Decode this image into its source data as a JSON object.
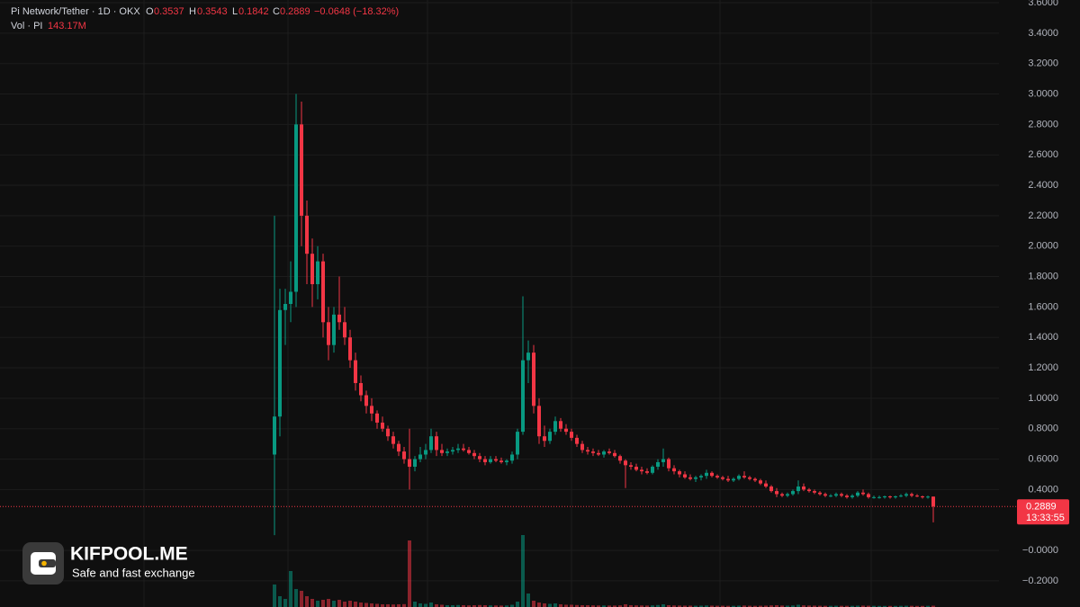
{
  "chart_data": {
    "type": "candlestick",
    "symbol": "Pi Network/Tether · 1D · OKX",
    "ohlc_labels": [
      "O",
      "H",
      "L",
      "C"
    ],
    "change_label": "−0.0648 (−18.32%)",
    "up_color": "#089981",
    "down_color": "#f23645",
    "ylim": [
      -0.372,
      3.618
    ],
    "yticks": [
      {
        "value": -0.2,
        "label": "−0.2000"
      },
      {
        "value": 0,
        "label": "−0.0000"
      },
      {
        "value": 0.4,
        "label": "0.4000"
      },
      {
        "value": 0.6,
        "label": "0.6000"
      },
      {
        "value": 0.8,
        "label": "0.8000"
      },
      {
        "value": 1,
        "label": "1.0000"
      },
      {
        "value": 1.2,
        "label": "1.2000"
      },
      {
        "value": 1.4,
        "label": "1.4000"
      },
      {
        "value": 1.6,
        "label": "1.6000"
      },
      {
        "value": 1.8,
        "label": "1.8000"
      },
      {
        "value": 2,
        "label": "2.0000"
      },
      {
        "value": 2.2,
        "label": "2.2000"
      },
      {
        "value": 2.4,
        "label": "2.4000"
      },
      {
        "value": 2.6,
        "label": "2.6000"
      },
      {
        "value": 2.8,
        "label": "2.8000"
      },
      {
        "value": 3,
        "label": "3.0000"
      },
      {
        "value": 3.2,
        "label": "3.2000"
      },
      {
        "value": 3.4,
        "label": "3.4000"
      },
      {
        "value": 3.6,
        "label": "3.6000"
      }
    ],
    "grid": true,
    "countdown": "13:33:55",
    "ohlc": [
      [
        0.63,
        2.2,
        0.1,
        0.88
      ],
      [
        0.88,
        1.72,
        0.75,
        1.58
      ],
      [
        1.58,
        1.72,
        1.35,
        1.62
      ],
      [
        1.62,
        1.9,
        1.5,
        1.7
      ],
      [
        1.7,
        3.0,
        1.6,
        2.8
      ],
      [
        2.8,
        2.95,
        2.0,
        2.2
      ],
      [
        2.2,
        2.3,
        1.75,
        1.95
      ],
      [
        1.95,
        2.05,
        1.6,
        1.75
      ],
      [
        1.75,
        2.0,
        1.65,
        1.9
      ],
      [
        1.9,
        1.95,
        1.4,
        1.5
      ],
      [
        1.5,
        1.6,
        1.25,
        1.35
      ],
      [
        1.35,
        1.6,
        1.3,
        1.55
      ],
      [
        1.55,
        1.8,
        1.45,
        1.5
      ],
      [
        1.5,
        1.6,
        1.35,
        1.4
      ],
      [
        1.4,
        1.45,
        1.2,
        1.25
      ],
      [
        1.25,
        1.3,
        1.05,
        1.1
      ],
      [
        1.1,
        1.15,
        0.98,
        1.02
      ],
      [
        1.02,
        1.05,
        0.9,
        0.95
      ],
      [
        0.95,
        1.0,
        0.85,
        0.9
      ],
      [
        0.9,
        0.92,
        0.8,
        0.84
      ],
      [
        0.84,
        0.88,
        0.78,
        0.8
      ],
      [
        0.8,
        0.82,
        0.72,
        0.75
      ],
      [
        0.75,
        0.78,
        0.67,
        0.7
      ],
      [
        0.7,
        0.72,
        0.62,
        0.65
      ],
      [
        0.65,
        0.68,
        0.57,
        0.6
      ],
      [
        0.6,
        0.8,
        0.4,
        0.55
      ],
      [
        0.55,
        0.62,
        0.52,
        0.6
      ],
      [
        0.6,
        0.68,
        0.58,
        0.63
      ],
      [
        0.63,
        0.7,
        0.6,
        0.66
      ],
      [
        0.66,
        0.8,
        0.64,
        0.75
      ],
      [
        0.75,
        0.78,
        0.62,
        0.66
      ],
      [
        0.66,
        0.7,
        0.62,
        0.64
      ],
      [
        0.64,
        0.67,
        0.62,
        0.65
      ],
      [
        0.65,
        0.68,
        0.63,
        0.66
      ],
      [
        0.66,
        0.7,
        0.64,
        0.67
      ],
      [
        0.67,
        0.7,
        0.65,
        0.66
      ],
      [
        0.66,
        0.68,
        0.63,
        0.64
      ],
      [
        0.64,
        0.66,
        0.6,
        0.62
      ],
      [
        0.62,
        0.64,
        0.58,
        0.6
      ],
      [
        0.6,
        0.62,
        0.56,
        0.58
      ],
      [
        0.58,
        0.62,
        0.57,
        0.6
      ],
      [
        0.6,
        0.62,
        0.58,
        0.59
      ],
      [
        0.59,
        0.61,
        0.57,
        0.58
      ],
      [
        0.58,
        0.6,
        0.56,
        0.59
      ],
      [
        0.59,
        0.65,
        0.57,
        0.63
      ],
      [
        0.63,
        0.8,
        0.6,
        0.78
      ],
      [
        0.78,
        1.67,
        0.76,
        1.25
      ],
      [
        1.25,
        1.38,
        1.1,
        1.3
      ],
      [
        1.3,
        1.35,
        0.9,
        0.95
      ],
      [
        0.95,
        1.0,
        0.7,
        0.75
      ],
      [
        0.75,
        0.82,
        0.68,
        0.72
      ],
      [
        0.72,
        0.8,
        0.7,
        0.78
      ],
      [
        0.78,
        0.88,
        0.76,
        0.85
      ],
      [
        0.85,
        0.87,
        0.78,
        0.8
      ],
      [
        0.8,
        0.83,
        0.76,
        0.78
      ],
      [
        0.78,
        0.8,
        0.72,
        0.74
      ],
      [
        0.74,
        0.76,
        0.68,
        0.7
      ],
      [
        0.7,
        0.72,
        0.64,
        0.66
      ],
      [
        0.66,
        0.68,
        0.63,
        0.65
      ],
      [
        0.65,
        0.67,
        0.62,
        0.64
      ],
      [
        0.64,
        0.66,
        0.62,
        0.63
      ],
      [
        0.63,
        0.66,
        0.61,
        0.65
      ],
      [
        0.65,
        0.67,
        0.63,
        0.64
      ],
      [
        0.64,
        0.66,
        0.61,
        0.62
      ],
      [
        0.62,
        0.63,
        0.57,
        0.59
      ],
      [
        0.59,
        0.6,
        0.41,
        0.56
      ],
      [
        0.56,
        0.58,
        0.53,
        0.55
      ],
      [
        0.55,
        0.57,
        0.52,
        0.53
      ],
      [
        0.53,
        0.55,
        0.5,
        0.52
      ],
      [
        0.52,
        0.54,
        0.5,
        0.51
      ],
      [
        0.51,
        0.56,
        0.5,
        0.55
      ],
      [
        0.55,
        0.6,
        0.53,
        0.58
      ],
      [
        0.58,
        0.67,
        0.55,
        0.6
      ],
      [
        0.6,
        0.61,
        0.52,
        0.54
      ],
      [
        0.54,
        0.56,
        0.5,
        0.52
      ],
      [
        0.52,
        0.53,
        0.48,
        0.5
      ],
      [
        0.5,
        0.52,
        0.47,
        0.48
      ],
      [
        0.48,
        0.5,
        0.46,
        0.47
      ],
      [
        0.47,
        0.49,
        0.45,
        0.48
      ],
      [
        0.48,
        0.5,
        0.46,
        0.49
      ],
      [
        0.49,
        0.53,
        0.47,
        0.51
      ],
      [
        0.51,
        0.52,
        0.48,
        0.49
      ],
      [
        0.49,
        0.5,
        0.47,
        0.48
      ],
      [
        0.48,
        0.49,
        0.46,
        0.47
      ],
      [
        0.47,
        0.49,
        0.45,
        0.46
      ],
      [
        0.46,
        0.48,
        0.45,
        0.47
      ],
      [
        0.47,
        0.5,
        0.46,
        0.49
      ],
      [
        0.49,
        0.52,
        0.47,
        0.48
      ],
      [
        0.48,
        0.49,
        0.46,
        0.47
      ],
      [
        0.47,
        0.48,
        0.45,
        0.46
      ],
      [
        0.46,
        0.47,
        0.43,
        0.44
      ],
      [
        0.44,
        0.46,
        0.41,
        0.42
      ],
      [
        0.42,
        0.43,
        0.38,
        0.39
      ],
      [
        0.39,
        0.41,
        0.35,
        0.37
      ],
      [
        0.37,
        0.38,
        0.35,
        0.36
      ],
      [
        0.36,
        0.38,
        0.35,
        0.37
      ],
      [
        0.37,
        0.4,
        0.36,
        0.39
      ],
      [
        0.39,
        0.46,
        0.37,
        0.42
      ],
      [
        0.42,
        0.44,
        0.39,
        0.4
      ],
      [
        0.4,
        0.41,
        0.38,
        0.39
      ],
      [
        0.39,
        0.4,
        0.37,
        0.38
      ],
      [
        0.38,
        0.39,
        0.36,
        0.37
      ],
      [
        0.37,
        0.38,
        0.35,
        0.36
      ],
      [
        0.36,
        0.37,
        0.35,
        0.36
      ],
      [
        0.36,
        0.38,
        0.35,
        0.37
      ],
      [
        0.37,
        0.38,
        0.35,
        0.36
      ],
      [
        0.36,
        0.37,
        0.34,
        0.35
      ],
      [
        0.35,
        0.37,
        0.34,
        0.36
      ],
      [
        0.36,
        0.39,
        0.35,
        0.38
      ],
      [
        0.38,
        0.4,
        0.36,
        0.37
      ],
      [
        0.37,
        0.38,
        0.34,
        0.35
      ],
      [
        0.35,
        0.36,
        0.34,
        0.35
      ],
      [
        0.35,
        0.36,
        0.34,
        0.35
      ],
      [
        0.35,
        0.36,
        0.34,
        0.355
      ],
      [
        0.355,
        0.36,
        0.34,
        0.35
      ],
      [
        0.35,
        0.36,
        0.34,
        0.355
      ],
      [
        0.355,
        0.37,
        0.35,
        0.36
      ],
      [
        0.36,
        0.38,
        0.35,
        0.37
      ],
      [
        0.37,
        0.38,
        0.35,
        0.36
      ],
      [
        0.36,
        0.37,
        0.35,
        0.355
      ],
      [
        0.355,
        0.36,
        0.34,
        0.35
      ],
      [
        0.35,
        0.36,
        0.34,
        0.3537
      ],
      [
        0.3537,
        0.3543,
        0.1842,
        0.2889
      ]
    ],
    "volume": {
      "name": "Vol · PI",
      "last_label": "143.17M",
      "values": [
        2500,
        1200,
        900,
        4000,
        2000,
        1800,
        1200,
        900,
        700,
        800,
        900,
        700,
        800,
        600,
        700,
        600,
        500,
        450,
        400,
        350,
        300,
        300,
        280,
        300,
        320,
        7400,
        600,
        400,
        350,
        500,
        300,
        250,
        200,
        200,
        220,
        200,
        180,
        200,
        220,
        200,
        180,
        170,
        160,
        170,
        250,
        600,
        8000,
        1500,
        700,
        500,
        400,
        350,
        400,
        300,
        250,
        250,
        220,
        200,
        200,
        180,
        170,
        170,
        160,
        160,
        180,
        300,
        200,
        180,
        170,
        160,
        180,
        220,
        300,
        200,
        170,
        160,
        150,
        150,
        140,
        150,
        170,
        150,
        140,
        140,
        130,
        130,
        150,
        160,
        140,
        130,
        140,
        150,
        180,
        200,
        160,
        150,
        170,
        250,
        180,
        160,
        150,
        140,
        130,
        130,
        140,
        130,
        130,
        130,
        150,
        150,
        140,
        130,
        120,
        120,
        120,
        120,
        130,
        140,
        130,
        120,
        120,
        130,
        143.17
      ]
    }
  },
  "brand": {
    "name": "KIFPOOL.ME",
    "tagline": "Safe and fast exchange"
  }
}
